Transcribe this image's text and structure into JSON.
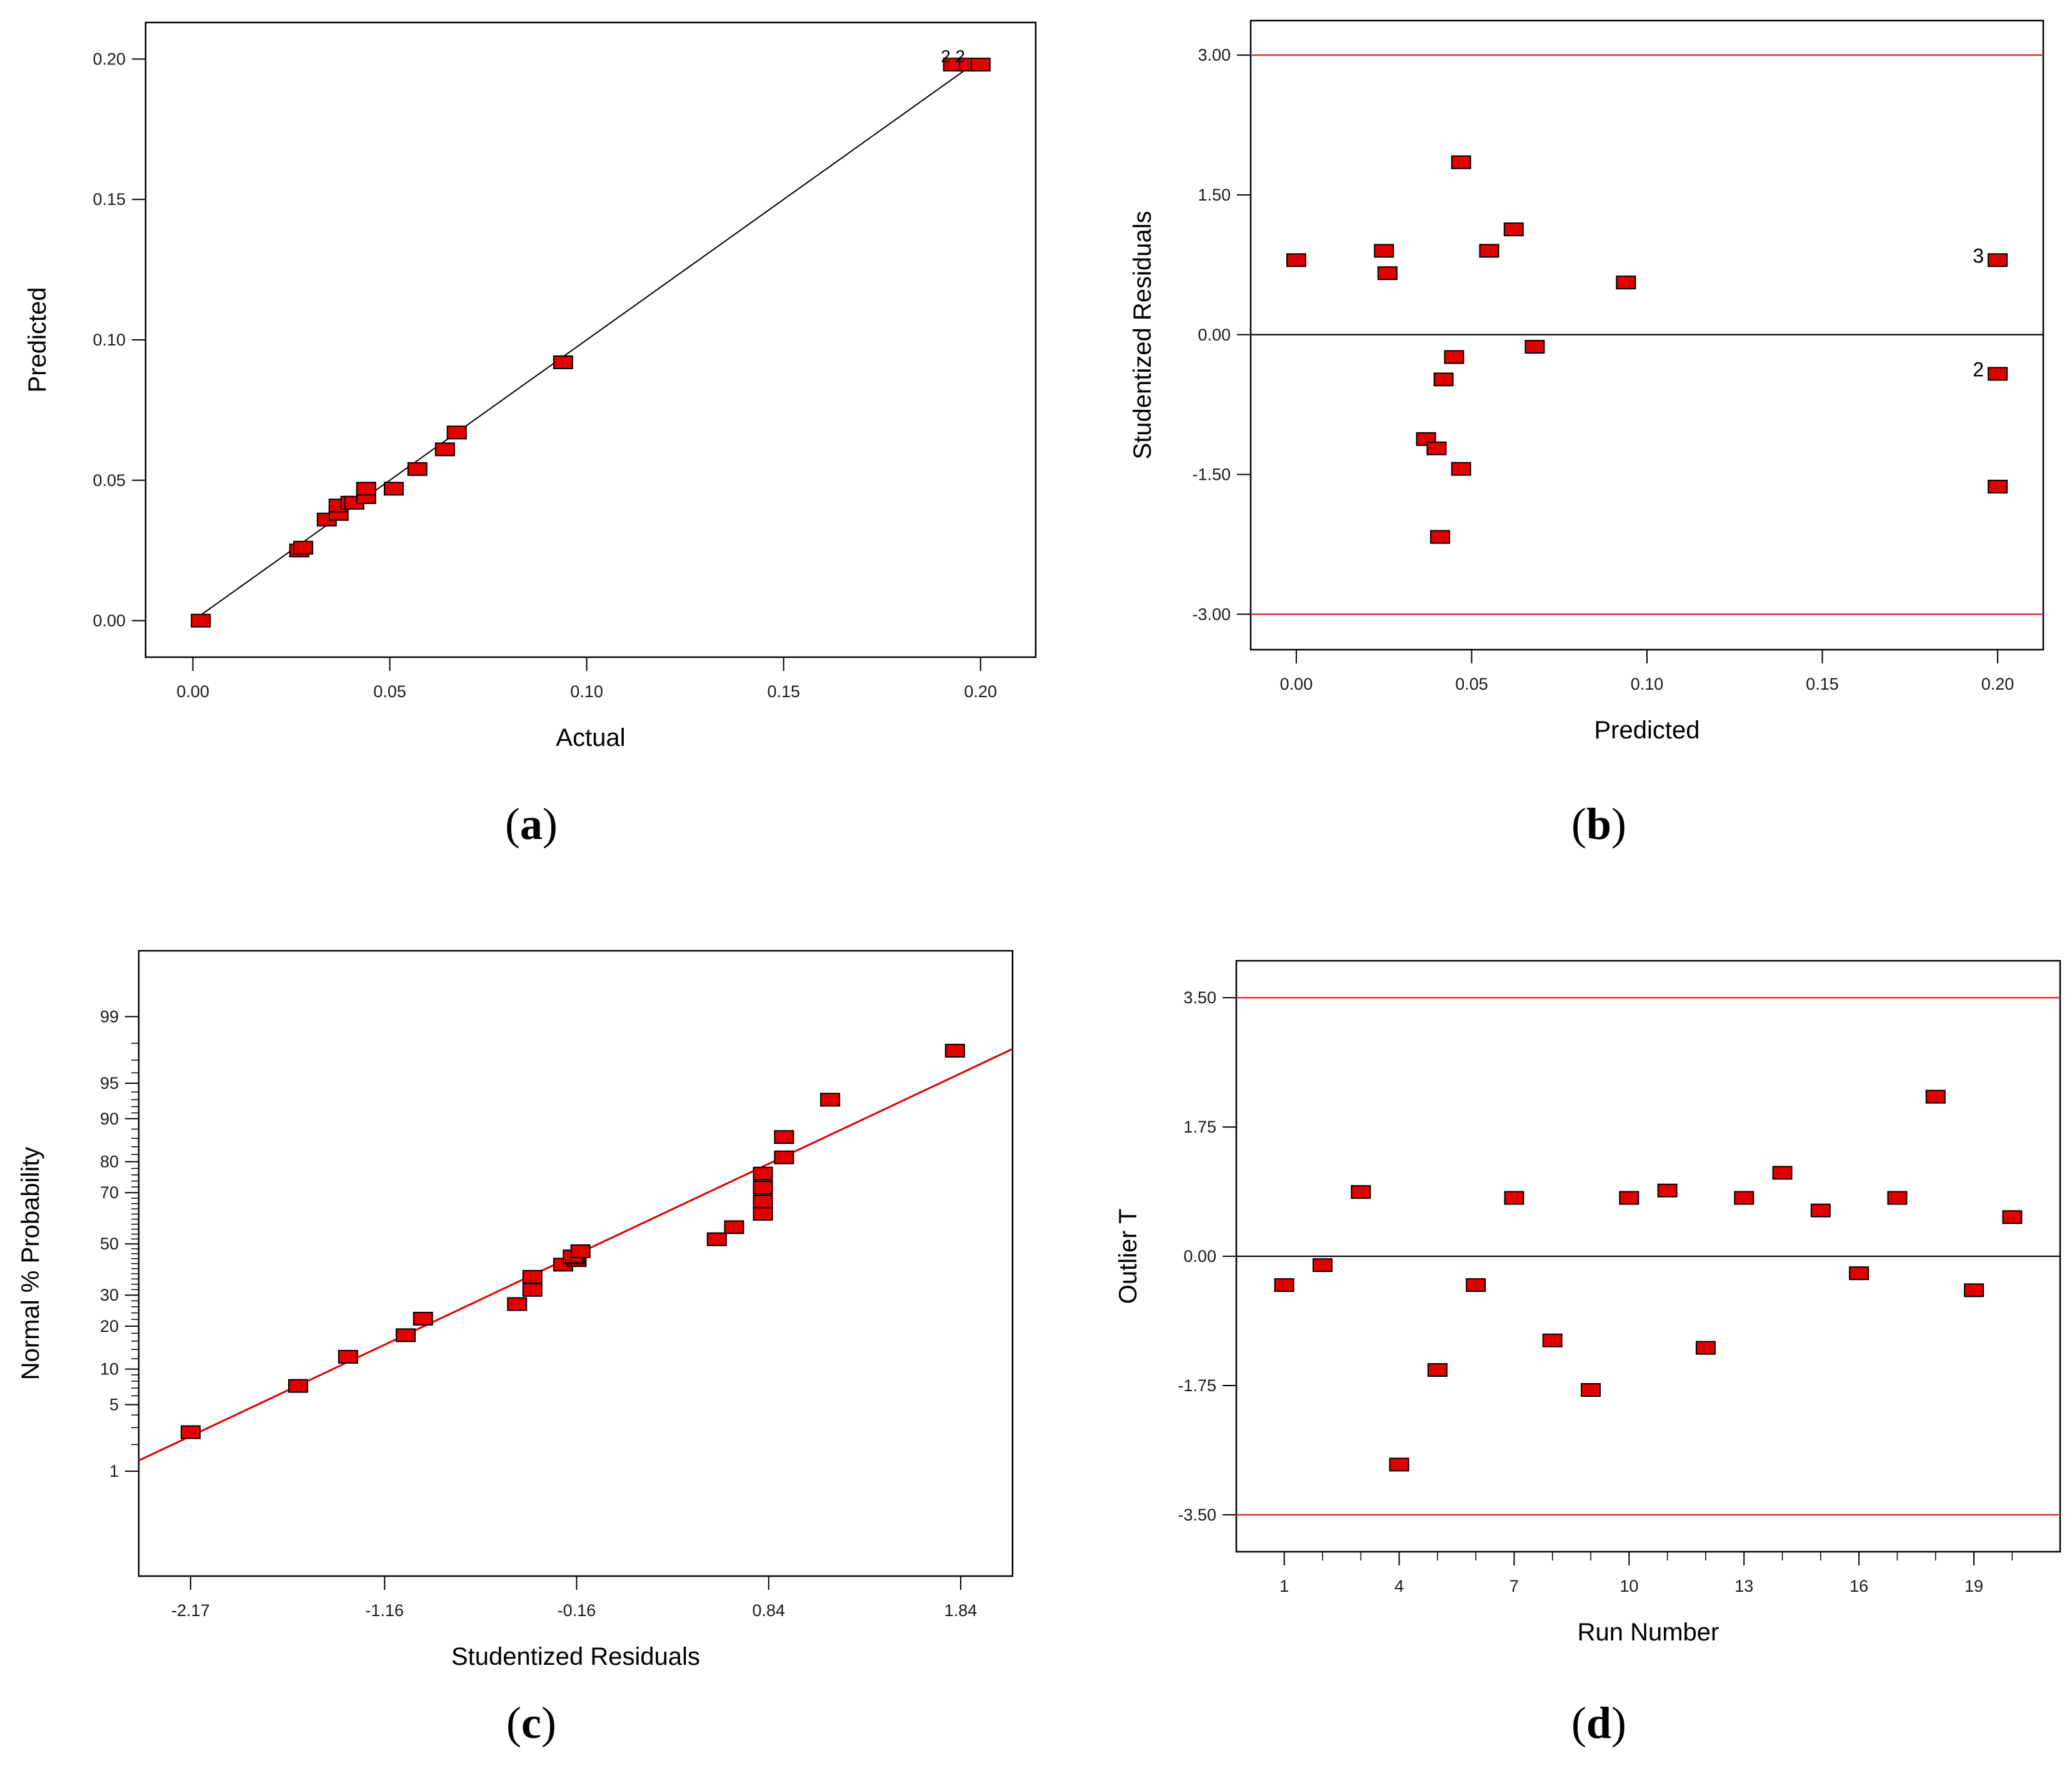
{
  "colors": {
    "marker": "#e00000",
    "marker_edge": "#000000",
    "ref_line": "#e23030",
    "fit_line": "#e00000",
    "axis": "#000000",
    "tick_text": "#1a1a1a"
  },
  "chart_data": [
    {
      "id": "a",
      "type": "scatter",
      "caption": "a",
      "title": "",
      "xlabel": "Actual",
      "ylabel": "Predicted",
      "xlim": [
        -0.012,
        0.214
      ],
      "ylim": [
        -0.013,
        0.213
      ],
      "xticks": [
        0,
        0.05,
        0.1,
        0.15,
        0.2
      ],
      "xtick_labels": [
        "0.00",
        "0.05",
        "0.10",
        "0.15",
        "0.20"
      ],
      "yticks": [
        0,
        0.05,
        0.1,
        0.15,
        0.2
      ],
      "ytick_labels": [
        "0.00",
        "0.05",
        "0.10",
        "0.15",
        "0.20"
      ],
      "diagonal": true,
      "annotation": "2 2",
      "points": [
        [
          0.002,
          0.0
        ],
        [
          0.027,
          0.025
        ],
        [
          0.028,
          0.026
        ],
        [
          0.034,
          0.036
        ],
        [
          0.037,
          0.038
        ],
        [
          0.037,
          0.041
        ],
        [
          0.04,
          0.042
        ],
        [
          0.041,
          0.042
        ],
        [
          0.044,
          0.044
        ],
        [
          0.044,
          0.047
        ],
        [
          0.051,
          0.047
        ],
        [
          0.057,
          0.054
        ],
        [
          0.064,
          0.061
        ],
        [
          0.067,
          0.067
        ],
        [
          0.094,
          0.092
        ],
        [
          0.193,
          0.198
        ],
        [
          0.197,
          0.198
        ],
        [
          0.2,
          0.198
        ]
      ]
    },
    {
      "id": "b",
      "type": "scatter",
      "caption": "b",
      "title": "",
      "xlabel": "Predicted",
      "ylabel": "Studentized Residuals",
      "xlim": [
        -0.013,
        0.213
      ],
      "ylim": [
        -3.38,
        3.37
      ],
      "xticks": [
        0,
        0.05,
        0.1,
        0.15,
        0.2
      ],
      "xtick_labels": [
        "0.00",
        "0.05",
        "0.10",
        "0.15",
        "0.20"
      ],
      "yticks": [
        -3,
        -1.5,
        0,
        1.5,
        3
      ],
      "ytick_labels": [
        "-3.00",
        "-1.50",
        "0.00",
        "1.50",
        "3.00"
      ],
      "ref_lines": [
        3.0,
        -3.0
      ],
      "center_line": 0.0,
      "labels": [
        {
          "text": "3",
          "x": 0.2,
          "y": 0.8
        },
        {
          "text": "2",
          "x": 0.2,
          "y": -0.42
        }
      ],
      "points": [
        [
          0.0,
          0.8
        ],
        [
          0.025,
          0.9
        ],
        [
          0.026,
          0.66
        ],
        [
          0.037,
          -1.12
        ],
        [
          0.04,
          -1.22
        ],
        [
          0.041,
          -2.17
        ],
        [
          0.042,
          -0.48
        ],
        [
          0.045,
          -0.24
        ],
        [
          0.047,
          -1.44
        ],
        [
          0.047,
          1.85
        ],
        [
          0.055,
          0.9
        ],
        [
          0.062,
          1.13
        ],
        [
          0.068,
          -0.13
        ],
        [
          0.094,
          0.56
        ],
        [
          0.2,
          0.8
        ],
        [
          0.2,
          -0.42
        ],
        [
          0.2,
          -1.63
        ]
      ]
    },
    {
      "id": "c",
      "type": "scatter",
      "caption": "c",
      "title": "",
      "xlabel": "Studentized Residuals",
      "ylabel": "Normal % Probability",
      "xlim": [
        -2.44,
        2.11
      ],
      "xticks": [
        -2.17,
        -1.16,
        -0.16,
        0.84,
        1.84
      ],
      "xtick_labels": [
        "-2.17",
        "-1.16",
        "-0.16",
        "0.84",
        "1.84"
      ],
      "yscale": "probit",
      "ylim_z": [
        -3.4,
        3.0
      ],
      "yticks": [
        1,
        5,
        10,
        20,
        30,
        50,
        70,
        80,
        90,
        95,
        99
      ],
      "ytick_labels": [
        "1",
        "5",
        "10",
        "20",
        "30",
        "50",
        "70",
        "80",
        "90",
        "95",
        "99"
      ],
      "fit_line": {
        "x1": -2.44,
        "p1": 1.33,
        "x2": 2.11,
        "p2": 97.7
      },
      "points": [
        [
          -2.17,
          2.7
        ],
        [
          -1.61,
          7.3
        ],
        [
          -1.35,
          12.4
        ],
        [
          -1.05,
          17.5
        ],
        [
          -0.96,
          22.2
        ],
        [
          -0.47,
          26.9
        ],
        [
          -0.39,
          31.9
        ],
        [
          -0.39,
          36.8
        ],
        [
          -0.23,
          41.6
        ],
        [
          -0.16,
          43.4
        ],
        [
          -0.17,
          44.4
        ],
        [
          -0.18,
          44.9
        ],
        [
          -0.14,
          47.0
        ],
        [
          0.57,
          51.9
        ],
        [
          0.66,
          56.8
        ],
        [
          0.81,
          62.1
        ],
        [
          0.81,
          66.8
        ],
        [
          0.81,
          71.8
        ],
        [
          0.81,
          76.4
        ],
        [
          0.92,
          81.2
        ],
        [
          0.92,
          86.3
        ],
        [
          1.16,
          93.0
        ],
        [
          1.81,
          97.6
        ]
      ]
    },
    {
      "id": "d",
      "type": "scatter",
      "caption": "d",
      "title": "",
      "xlabel": "Run Number",
      "ylabel": "Outlier T",
      "xlim": [
        -0.25,
        21.25
      ],
      "ylim": [
        -4.0,
        4.0
      ],
      "xticks": [
        1,
        4,
        7,
        10,
        13,
        16,
        19
      ],
      "xtick_labels": [
        "1",
        "4",
        "7",
        "10",
        "13",
        "16",
        "19"
      ],
      "minor_xticks": [
        2,
        3,
        5,
        6,
        8,
        9,
        11,
        12,
        14,
        15,
        17,
        18,
        20
      ],
      "yticks": [
        -3.5,
        -1.75,
        0,
        1.75,
        3.5
      ],
      "ytick_labels": [
        "-3.50",
        "-1.75",
        "0.00",
        "1.75",
        "3.50"
      ],
      "ref_lines": [
        3.5,
        -3.5
      ],
      "center_line": 0.0,
      "points": [
        [
          1,
          -0.39
        ],
        [
          2,
          -0.12
        ],
        [
          3,
          0.87
        ],
        [
          4,
          -2.82
        ],
        [
          5,
          -1.54
        ],
        [
          6,
          -0.39
        ],
        [
          7,
          0.79
        ],
        [
          8,
          -1.14
        ],
        [
          9,
          -1.81
        ],
        [
          10,
          0.79
        ],
        [
          11,
          0.89
        ],
        [
          12,
          -1.24
        ],
        [
          13,
          0.79
        ],
        [
          14,
          1.13
        ],
        [
          15,
          0.62
        ],
        [
          16,
          -0.23
        ],
        [
          17,
          0.79
        ],
        [
          18,
          2.16
        ],
        [
          19,
          -0.46
        ],
        [
          20,
          0.53
        ]
      ]
    }
  ]
}
